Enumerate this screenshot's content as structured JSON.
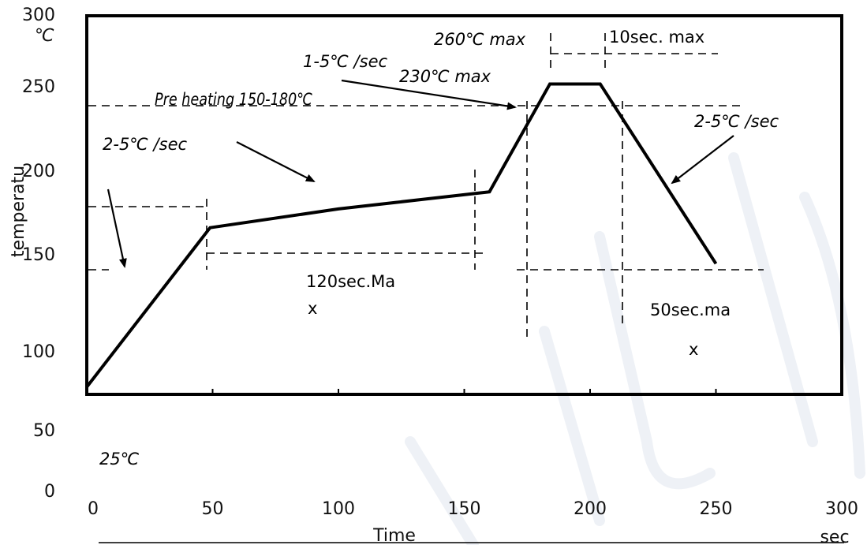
{
  "chart_data": {
    "type": "line",
    "title": "",
    "xlabel": "Time",
    "xunit": "sec",
    "ylabel": "temperatu",
    "yunit": "℃",
    "xlim": [
      0,
      300
    ],
    "ylim": [
      0,
      300
    ],
    "x_ticks": [
      "0",
      "50",
      "100",
      "150",
      "200",
      "250",
      "300"
    ],
    "y_ticks": [
      "0",
      "50",
      "100",
      "150",
      "200",
      "250",
      "300"
    ],
    "grid": false,
    "series": [
      {
        "x": [
          0,
          49,
          100,
          160,
          184,
          204,
          250
        ],
        "y": [
          85,
          178,
          189,
          199,
          262,
          262,
          157
        ]
      }
    ],
    "annotations": {
      "ramp_up": "2-5℃ /sec",
      "preheat": "Pre heating 150-180℃",
      "ramp_mid": "1-5℃ /sec",
      "t230": "230℃  max",
      "t260": "260℃  max",
      "ten_sec": "10sec. max",
      "ramp_down": "2-5℃ /sec",
      "s120_a": "120sec.Ma",
      "s120_b": "x",
      "s50_a": "50sec.ma",
      "s50_b": "x",
      "t25": "25℃"
    }
  }
}
